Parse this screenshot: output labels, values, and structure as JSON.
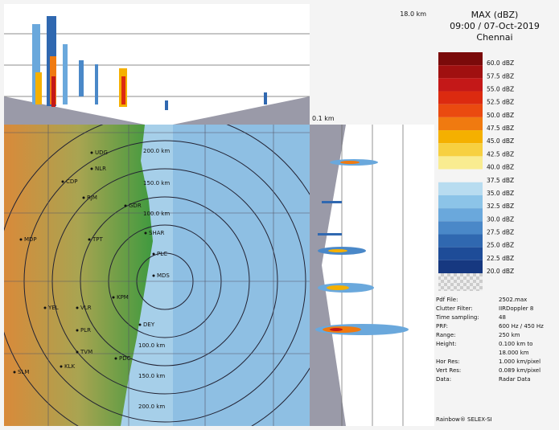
{
  "header": {
    "title": "MAX (dBZ)",
    "datetime": "09:00 / 07-Oct-2019",
    "location": "Chennai"
  },
  "section": {
    "top_height": "18.0 km",
    "bottom_height": "0.1 km"
  },
  "legend": {
    "items": [
      {
        "label": "60.0 dBZ",
        "color": "#7a0a0a"
      },
      {
        "label": "57.5 dBZ",
        "color": "#a01010"
      },
      {
        "label": "55.0 dBZ",
        "color": "#c41818"
      },
      {
        "label": "52.5 dBZ",
        "color": "#dc2a10"
      },
      {
        "label": "50.0 dBZ",
        "color": "#ea4a10"
      },
      {
        "label": "47.5 dBZ",
        "color": "#f07a10"
      },
      {
        "label": "45.0 dBZ",
        "color": "#f5b000"
      },
      {
        "label": "42.5 dBZ",
        "color": "#f7d040"
      },
      {
        "label": "40.0 dBZ",
        "color": "#f9ec90"
      },
      {
        "label": "37.5 dBZ",
        "color": "#f4f4f4"
      },
      {
        "label": "35.0 dBZ",
        "color": "#b8dcf0"
      },
      {
        "label": "32.5 dBZ",
        "color": "#8cc4e8"
      },
      {
        "label": "30.0 dBZ",
        "color": "#6aa8dc"
      },
      {
        "label": "27.5 dBZ",
        "color": "#4a88c8"
      },
      {
        "label": "25.0 dBZ",
        "color": "#3068b0"
      },
      {
        "label": "22.5 dBZ",
        "color": "#1e4c98"
      },
      {
        "label": "20.0 dBZ",
        "color": "#163880"
      }
    ]
  },
  "info": {
    "rows": [
      {
        "label": "Pdf File:",
        "value": "2502.max"
      },
      {
        "label": "Clutter Filter:",
        "value": "IIRDoppler 8"
      },
      {
        "label": "Time sampling:",
        "value": "48"
      },
      {
        "label": "PRF:",
        "value": "600 Hz / 450 Hz"
      },
      {
        "label": "Range:",
        "value": "250 km"
      },
      {
        "label": "Height:",
        "value": "0.100 km to"
      },
      {
        "label": "",
        "value": "18.000 km"
      },
      {
        "label": "Hor Res:",
        "value": "1.000 km/pixel"
      },
      {
        "label": "Vert Res:",
        "value": "0.089 km/pixel"
      },
      {
        "label": "Data:",
        "value": "Radar Data"
      }
    ],
    "footer": "Rainbow® SELEX-SI"
  },
  "map": {
    "places": [
      "UDG",
      "NLR",
      "CDP",
      "RJM",
      "GDR",
      "MDP",
      "TPT",
      "SHAR",
      "PLC",
      "MDS",
      "VLR",
      "KPM",
      "PLR",
      "TVM",
      "PDC",
      "KLK",
      "SLM",
      "YEL",
      "DEY"
    ],
    "ring_labels": [
      "200.0 km",
      "150.0 km",
      "100.0 km",
      "100.0 km",
      "150.0 km",
      "200.0 km"
    ]
  }
}
